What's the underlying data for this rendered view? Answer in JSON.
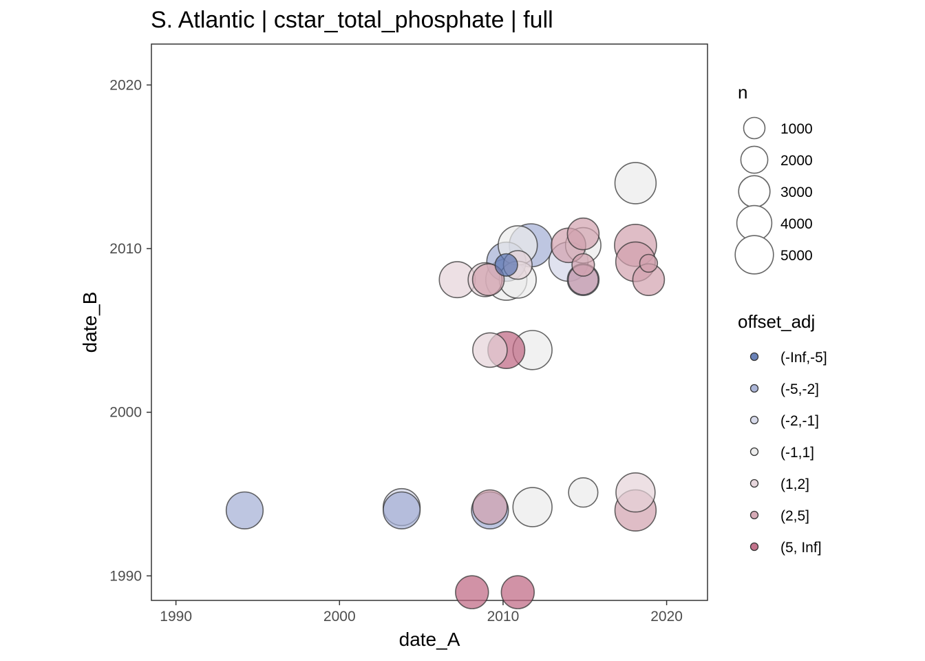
{
  "chart_data": {
    "type": "scatter",
    "title": "S. Atlantic | cstar_total_phosphate | full",
    "xlabel": "date_A",
    "ylabel": "date_B",
    "xlim": [
      1988.5,
      2022.5
    ],
    "ylim": [
      1988.5,
      2022.5
    ],
    "x_ticks": [
      "1990",
      "2000",
      "2010",
      "2020"
    ],
    "y_ticks": [
      "1990",
      "2000",
      "2010",
      "2020"
    ],
    "grid": false,
    "legend_position": "right",
    "size_legend": {
      "title": "n",
      "entries": [
        {
          "label": "1000",
          "n": 1000
        },
        {
          "label": "2000",
          "n": 2000
        },
        {
          "label": "3000",
          "n": 3000
        },
        {
          "label": "4000",
          "n": 4000
        },
        {
          "label": "5000",
          "n": 5000
        }
      ]
    },
    "color_legend": {
      "title": "offset_adj",
      "categories": [
        {
          "label": "(-Inf,-5]",
          "color": "#5a74b0"
        },
        {
          "label": "(-5,-2]",
          "color": "#a3aed4"
        },
        {
          "label": "(-2,-1]",
          "color": "#d3d6e8"
        },
        {
          "label": "(-1,1]",
          "color": "#ebebeb"
        },
        {
          "label": "(1,2]",
          "color": "#e5d3d9"
        },
        {
          "label": "(2,5]",
          "color": "#d1a1ae"
        },
        {
          "label": "(5, Inf]",
          "color": "#bd6480"
        }
      ]
    },
    "points": [
      {
        "x": 1994.2,
        "y": 1994.0,
        "n": 3000,
        "offset": "(-5,-2]"
      },
      {
        "x": 2003.8,
        "y": 1994.2,
        "n": 3000,
        "offset": "(-2,-1]"
      },
      {
        "x": 2003.8,
        "y": 1994.0,
        "n": 3000,
        "offset": "(-5,-2]"
      },
      {
        "x": 2009.2,
        "y": 1994.2,
        "n": 2500,
        "offset": "(2,5]"
      },
      {
        "x": 2009.2,
        "y": 1994.0,
        "n": 3000,
        "offset": "(-5,-2]"
      },
      {
        "x": 2011.8,
        "y": 1994.2,
        "n": 3500,
        "offset": "(-1,1]"
      },
      {
        "x": 2014.9,
        "y": 1995.1,
        "n": 1600,
        "offset": "(-1,1]"
      },
      {
        "x": 2018.1,
        "y": 1995.1,
        "n": 3500,
        "offset": "(1,2]"
      },
      {
        "x": 2018.1,
        "y": 1994.0,
        "n": 4000,
        "offset": "(2,5]"
      },
      {
        "x": 2008.1,
        "y": 1989.0,
        "n": 2200,
        "offset": "(5, Inf]"
      },
      {
        "x": 2010.9,
        "y": 1989.0,
        "n": 2200,
        "offset": "(5, Inf]"
      },
      {
        "x": 2009.2,
        "y": 2003.8,
        "n": 2500,
        "offset": "(1,2]"
      },
      {
        "x": 2010.2,
        "y": 2003.8,
        "n": 3000,
        "offset": "(5, Inf]"
      },
      {
        "x": 2011.8,
        "y": 2003.8,
        "n": 3500,
        "offset": "(-1,1]"
      },
      {
        "x": 2007.2,
        "y": 2008.1,
        "n": 2800,
        "offset": "(1,2]"
      },
      {
        "x": 2008.9,
        "y": 2008.1,
        "n": 2400,
        "offset": "(1,2]"
      },
      {
        "x": 2009.1,
        "y": 2008.1,
        "n": 2000,
        "offset": "(2,5]"
      },
      {
        "x": 2010.2,
        "y": 2008.1,
        "n": 4000,
        "offset": "(-1,1]"
      },
      {
        "x": 2010.9,
        "y": 2008.1,
        "n": 3000,
        "offset": "(-1,1]"
      },
      {
        "x": 2010.9,
        "y": 2009.0,
        "n": 1500,
        "offset": "(1,2]"
      },
      {
        "x": 2010.2,
        "y": 2009.2,
        "n": 3500,
        "offset": "(-5,-2]"
      },
      {
        "x": 2010.2,
        "y": 2009.0,
        "n": 700,
        "offset": "(-Inf,-5]"
      },
      {
        "x": 2010.9,
        "y": 2010.2,
        "n": 3500,
        "offset": "(-1,1]"
      },
      {
        "x": 2011.7,
        "y": 2010.2,
        "n": 4500,
        "offset": "(-5,-2]"
      },
      {
        "x": 2014.0,
        "y": 2009.2,
        "n": 3500,
        "offset": "(-2,-1]"
      },
      {
        "x": 2014.0,
        "y": 2010.2,
        "n": 2500,
        "offset": "(2,5]"
      },
      {
        "x": 2014.9,
        "y": 2010.9,
        "n": 2000,
        "offset": "(2,5]"
      },
      {
        "x": 2014.9,
        "y": 2010.2,
        "n": 2700,
        "offset": "(-1,1]"
      },
      {
        "x": 2014.9,
        "y": 2009.0,
        "n": 700,
        "offset": "(2,5]"
      },
      {
        "x": 2014.9,
        "y": 2008.1,
        "n": 2000,
        "offset": "(-5,-2]"
      },
      {
        "x": 2014.9,
        "y": 2008.1,
        "n": 1700,
        "offset": "(2,5]"
      },
      {
        "x": 2018.1,
        "y": 2010.2,
        "n": 4200,
        "offset": "(2,5]"
      },
      {
        "x": 2018.1,
        "y": 2009.2,
        "n": 3600,
        "offset": "(2,5]"
      },
      {
        "x": 2018.9,
        "y": 2009.1,
        "n": 300,
        "offset": "(2,5]"
      },
      {
        "x": 2018.9,
        "y": 2008.1,
        "n": 2000,
        "offset": "(2,5]"
      },
      {
        "x": 2018.1,
        "y": 2014.0,
        "n": 4000,
        "offset": "(-1,1]"
      }
    ]
  }
}
